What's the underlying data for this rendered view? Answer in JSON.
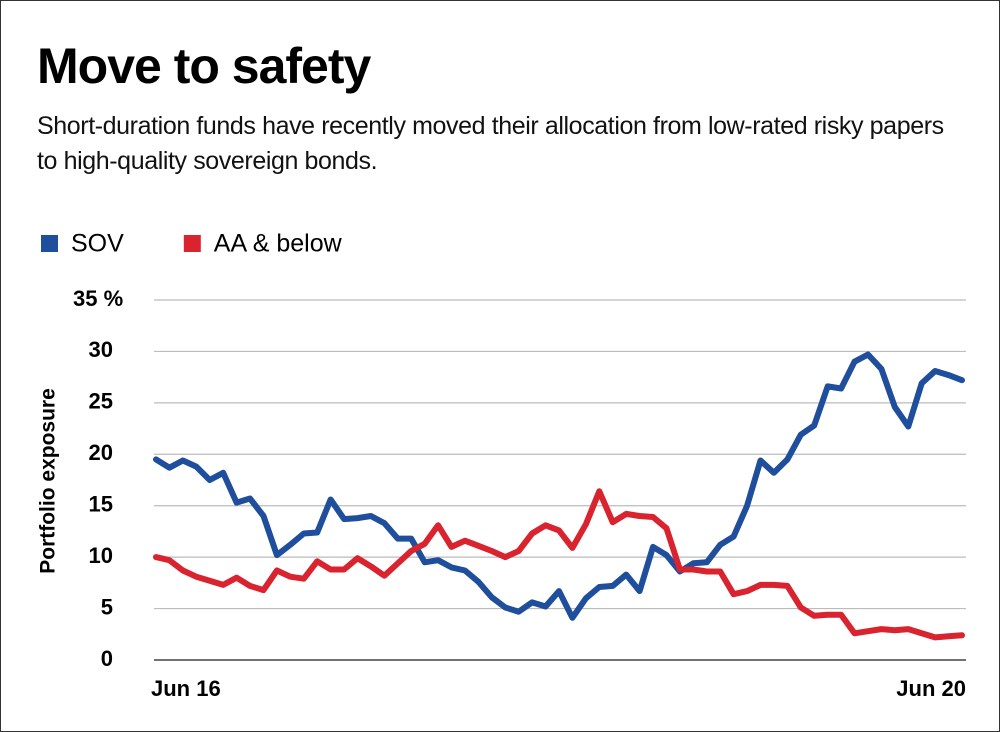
{
  "chart_data": {
    "type": "line",
    "title": "Move to safety",
    "subtitle": "Short-duration funds have recently moved their allocation from low-rated risky papers to high-quality sovereign bonds.",
    "y_label": "Portfolio exposure",
    "categories": [
      "Jun 16",
      null,
      null,
      null,
      null,
      null,
      null,
      null,
      null,
      null,
      null,
      null,
      null,
      null,
      null,
      null,
      null,
      null,
      null,
      null,
      null,
      null,
      null,
      null,
      null,
      null,
      null,
      null,
      null,
      null,
      null,
      null,
      null,
      null,
      null,
      null,
      null,
      null,
      null,
      null,
      null,
      null,
      null,
      null,
      null,
      null,
      null,
      null,
      null,
      null,
      null,
      null,
      null,
      null,
      null,
      null,
      null,
      null,
      null,
      null,
      "Jun 20"
    ],
    "series": [
      {
        "name": "SOV",
        "color": "#1f4e9c",
        "values": [
          19.5,
          18.7,
          19.4,
          18.8,
          17.5,
          18.2,
          15.3,
          15.7,
          14,
          10.2,
          11.2,
          12.3,
          12.4,
          15.6,
          13.7,
          13.8,
          14,
          13.3,
          11.8,
          11.8,
          9.5,
          9.7,
          9,
          8.7,
          7.6,
          6.1,
          5.1,
          4.7,
          5.6,
          5.2,
          6.7,
          4.1,
          6,
          7.1,
          7.2,
          8.3,
          6.7,
          11,
          10.2,
          8.6,
          9.4,
          9.5,
          11.2,
          12,
          15,
          19.4,
          18.2,
          19.5,
          21.9,
          22.8,
          26.6,
          26.4,
          29,
          29.7,
          28.3,
          24.6,
          22.7,
          26.9,
          28.1,
          27.7,
          27.2
        ]
      },
      {
        "name": "AA & below",
        "color": "#d9232e",
        "values": [
          10,
          9.7,
          8.7,
          8.1,
          7.7,
          7.3,
          8,
          7.2,
          6.8,
          8.7,
          8.1,
          7.9,
          9.6,
          8.8,
          8.8,
          9.9,
          9.1,
          8.2,
          9.4,
          10.6,
          11.3,
          13.1,
          11,
          11.6,
          11.1,
          10.6,
          10,
          10.6,
          12.3,
          13.1,
          12.6,
          10.9,
          13.2,
          16.4,
          13.4,
          14.2,
          14,
          13.9,
          12.8,
          8.8,
          8.8,
          8.6,
          8.6,
          6.4,
          6.7,
          7.3,
          7.3,
          7.2,
          5.1,
          4.3,
          4.4,
          4.4,
          2.6,
          2.8,
          3,
          2.9,
          3,
          2.6,
          2.2,
          2.3,
          2.4
        ]
      }
    ],
    "ylim": [
      0,
      35
    ],
    "yticks": [
      0,
      5,
      10,
      15,
      20,
      25,
      30,
      {
        "value": 35,
        "label": "35 %"
      }
    ],
    "grid": true
  }
}
